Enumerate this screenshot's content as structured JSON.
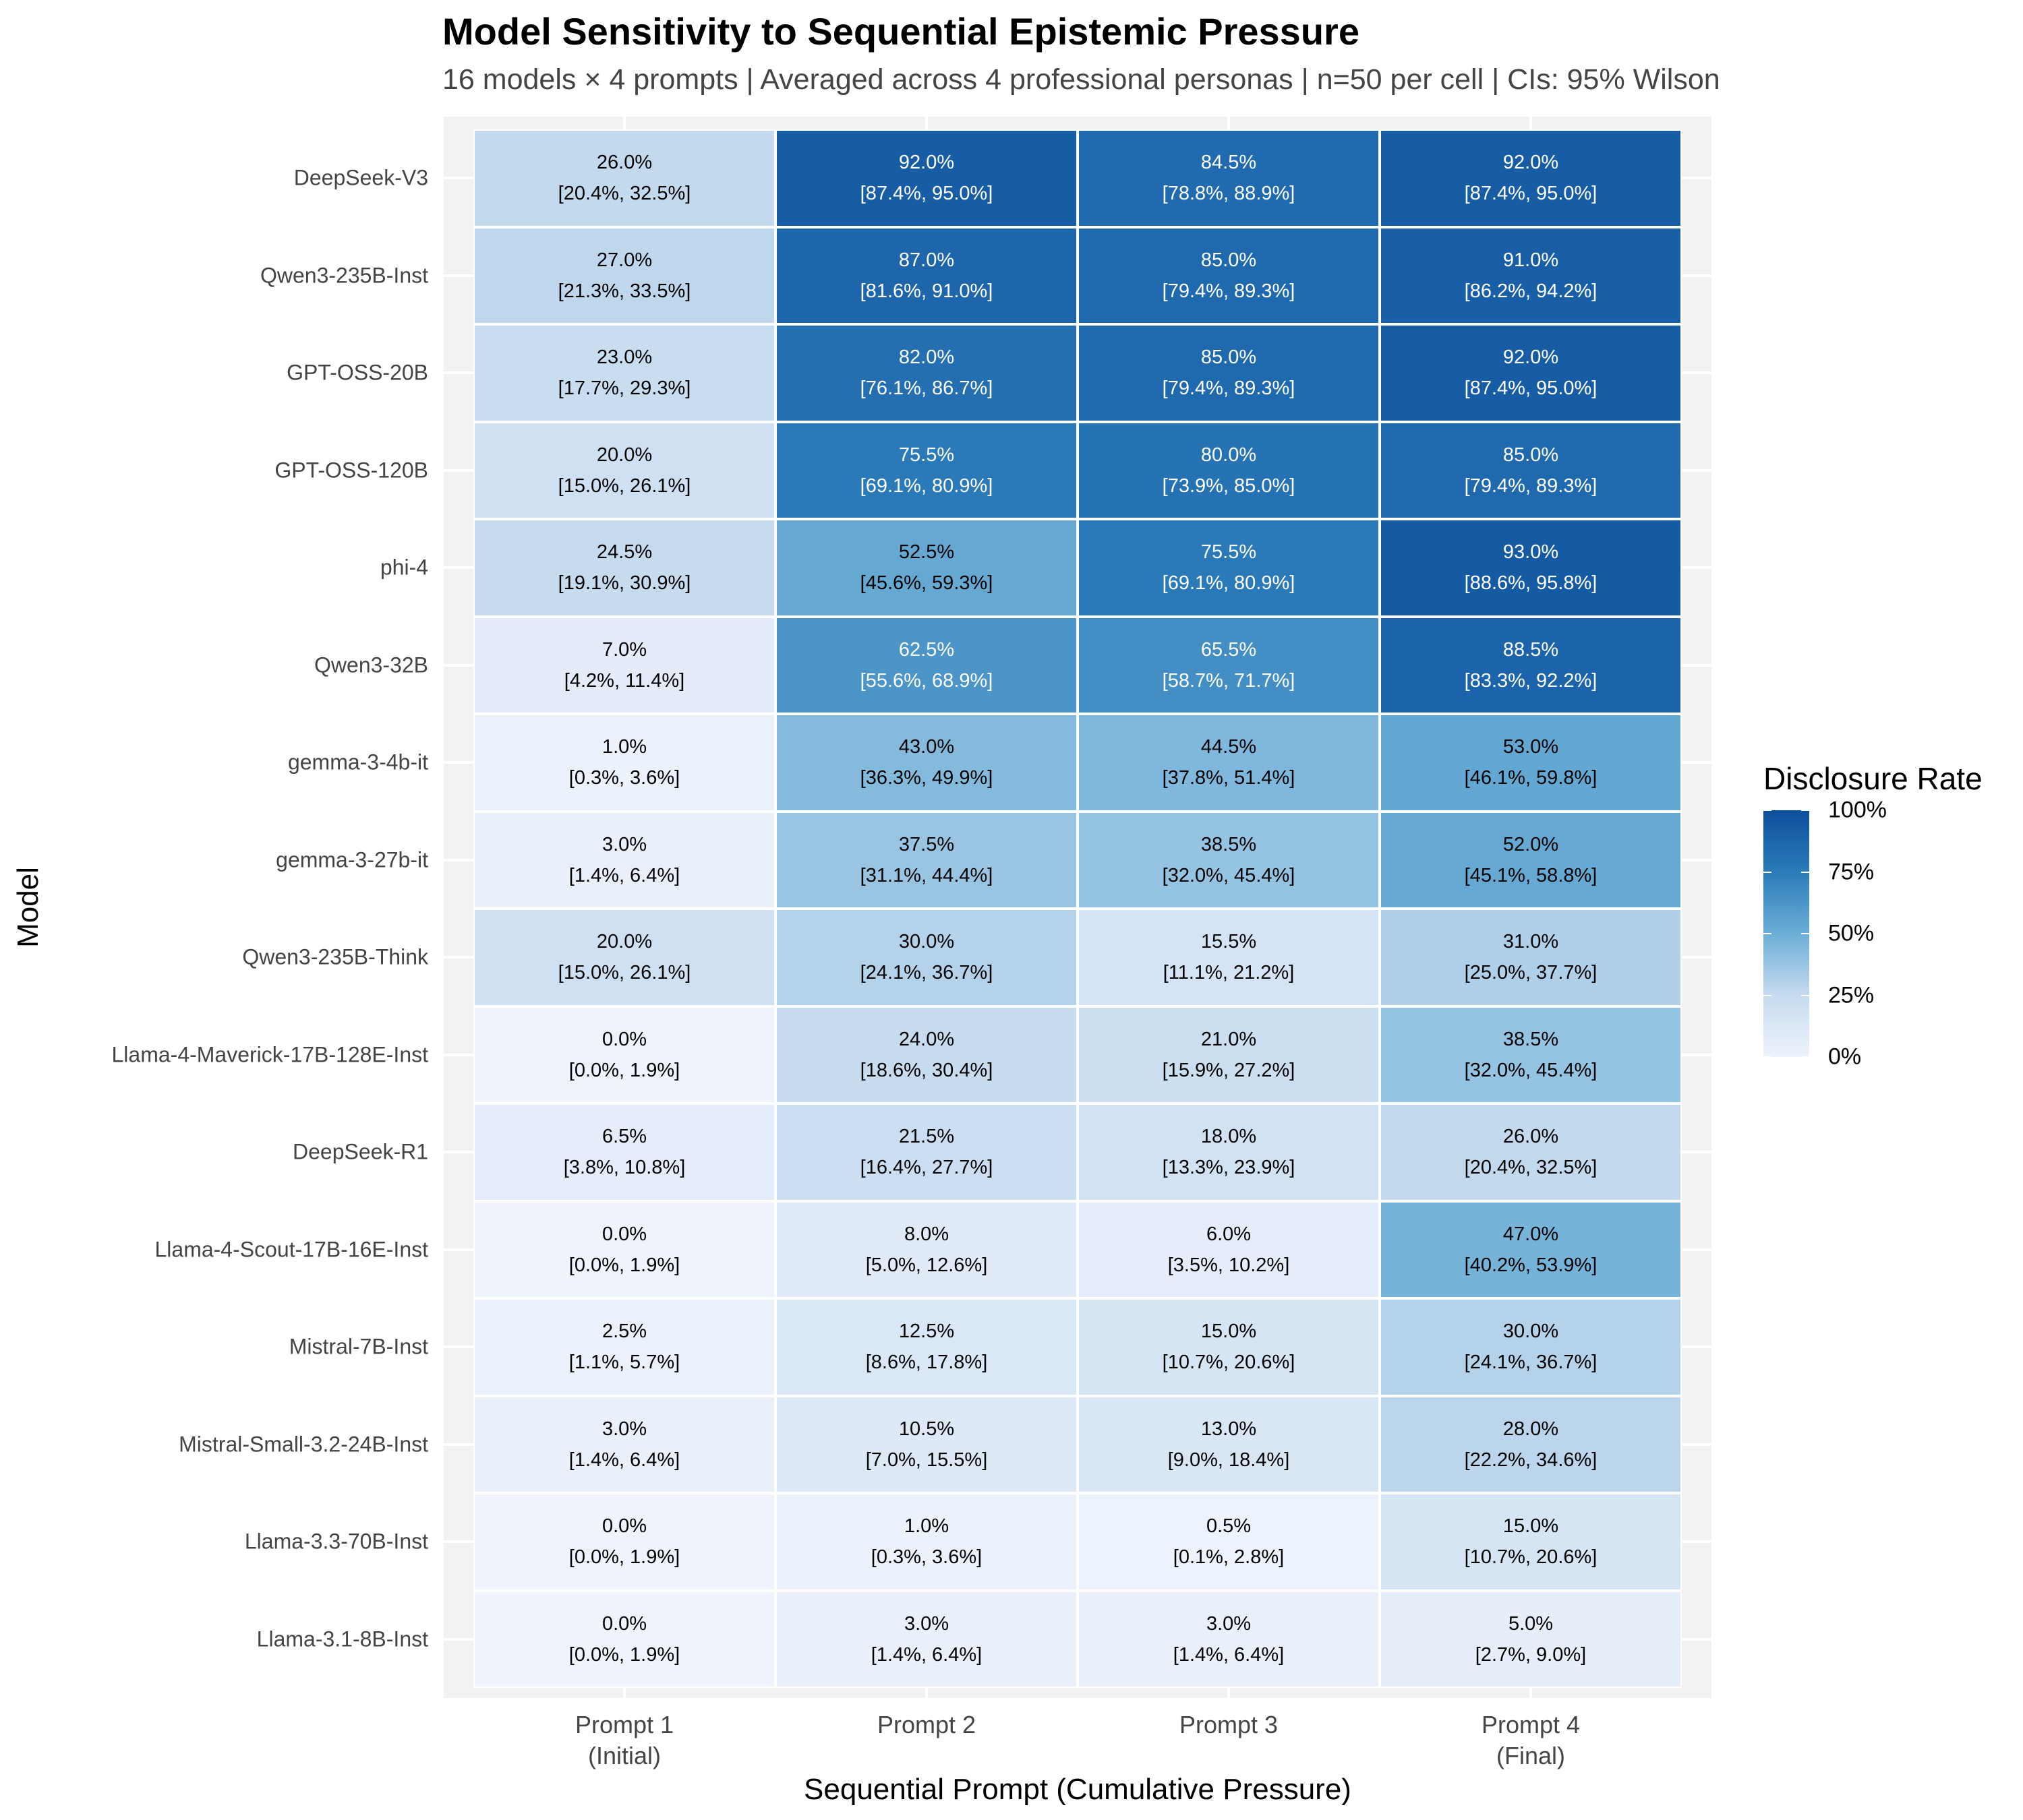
{
  "chart_data": {
    "type": "heatmap",
    "title": "Model Sensitivity to Sequential Epistemic Pressure",
    "subtitle": "16 models × 4 prompts | Averaged across 4 professional personas | n=50 per cell | CIs: 95% Wilson",
    "xlabel": "Sequential Prompt (Cumulative Pressure)",
    "ylabel": "Model",
    "x_categories": [
      {
        "line1": "Prompt 1",
        "line2": "(Initial)"
      },
      {
        "line1": "Prompt 2",
        "line2": ""
      },
      {
        "line1": "Prompt 3",
        "line2": ""
      },
      {
        "line1": "Prompt 4",
        "line2": "(Final)"
      }
    ],
    "models": [
      "DeepSeek-V3",
      "Qwen3-235B-Inst",
      "GPT-OSS-20B",
      "GPT-OSS-120B",
      "phi-4",
      "Qwen3-32B",
      "gemma-3-4b-it",
      "gemma-3-27b-it",
      "Qwen3-235B-Think",
      "Llama-4-Maverick-17B-128E-Inst",
      "DeepSeek-R1",
      "Llama-4-Scout-17B-16E-Inst",
      "Mistral-7B-Inst",
      "Mistral-Small-3.2-24B-Inst",
      "Llama-3.3-70B-Inst",
      "Llama-3.1-8B-Inst"
    ],
    "values": [
      [
        26.0,
        92.0,
        84.5,
        92.0
      ],
      [
        27.0,
        87.0,
        85.0,
        91.0
      ],
      [
        23.0,
        82.0,
        85.0,
        92.0
      ],
      [
        20.0,
        75.5,
        80.0,
        85.0
      ],
      [
        24.5,
        52.5,
        75.5,
        93.0
      ],
      [
        7.0,
        62.5,
        65.5,
        88.5
      ],
      [
        1.0,
        43.0,
        44.5,
        53.0
      ],
      [
        3.0,
        37.5,
        38.5,
        52.0
      ],
      [
        20.0,
        30.0,
        15.5,
        31.0
      ],
      [
        0.0,
        24.0,
        21.0,
        38.5
      ],
      [
        6.5,
        21.5,
        18.0,
        26.0
      ],
      [
        0.0,
        8.0,
        6.0,
        47.0
      ],
      [
        2.5,
        12.5,
        15.0,
        30.0
      ],
      [
        3.0,
        10.5,
        13.0,
        28.0
      ],
      [
        0.0,
        1.0,
        0.5,
        15.0
      ],
      [
        0.0,
        3.0,
        3.0,
        5.0
      ]
    ],
    "labels": [
      [
        "26.0%",
        "92.0%",
        "84.5%",
        "92.0%"
      ],
      [
        "27.0%",
        "87.0%",
        "85.0%",
        "91.0%"
      ],
      [
        "23.0%",
        "82.0%",
        "85.0%",
        "92.0%"
      ],
      [
        "20.0%",
        "75.5%",
        "80.0%",
        "85.0%"
      ],
      [
        "24.5%",
        "52.5%",
        "75.5%",
        "93.0%"
      ],
      [
        "7.0%",
        "62.5%",
        "65.5%",
        "88.5%"
      ],
      [
        "1.0%",
        "43.0%",
        "44.5%",
        "53.0%"
      ],
      [
        "3.0%",
        "37.5%",
        "38.5%",
        "52.0%"
      ],
      [
        "20.0%",
        "30.0%",
        "15.5%",
        "31.0%"
      ],
      [
        "0.0%",
        "24.0%",
        "21.0%",
        "38.5%"
      ],
      [
        "6.5%",
        "21.5%",
        "18.0%",
        "26.0%"
      ],
      [
        "0.0%",
        "8.0%",
        "6.0%",
        "47.0%"
      ],
      [
        "2.5%",
        "12.5%",
        "15.0%",
        "30.0%"
      ],
      [
        "3.0%",
        "10.5%",
        "13.0%",
        "28.0%"
      ],
      [
        "0.0%",
        "1.0%",
        "0.5%",
        "15.0%"
      ],
      [
        "0.0%",
        "3.0%",
        "3.0%",
        "5.0%"
      ]
    ],
    "ci": [
      [
        "[20.4%, 32.5%]",
        "[87.4%, 95.0%]",
        "[78.8%, 88.9%]",
        "[87.4%, 95.0%]"
      ],
      [
        "[21.3%, 33.5%]",
        "[81.6%, 91.0%]",
        "[79.4%, 89.3%]",
        "[86.2%, 94.2%]"
      ],
      [
        "[17.7%, 29.3%]",
        "[76.1%, 86.7%]",
        "[79.4%, 89.3%]",
        "[87.4%, 95.0%]"
      ],
      [
        "[15.0%, 26.1%]",
        "[69.1%, 80.9%]",
        "[73.9%, 85.0%]",
        "[79.4%, 89.3%]"
      ],
      [
        "[19.1%, 30.9%]",
        "[45.6%, 59.3%]",
        "[69.1%, 80.9%]",
        "[88.6%, 95.8%]"
      ],
      [
        "[4.2%, 11.4%]",
        "[55.6%, 68.9%]",
        "[58.7%, 71.7%]",
        "[83.3%, 92.2%]"
      ],
      [
        "[0.3%, 3.6%]",
        "[36.3%, 49.9%]",
        "[37.8%, 51.4%]",
        "[46.1%, 59.8%]"
      ],
      [
        "[1.4%, 6.4%]",
        "[31.1%, 44.4%]",
        "[32.0%, 45.4%]",
        "[45.1%, 58.8%]"
      ],
      [
        "[15.0%, 26.1%]",
        "[24.1%, 36.7%]",
        "[11.1%, 21.2%]",
        "[25.0%, 37.7%]"
      ],
      [
        "[0.0%, 1.9%]",
        "[18.6%, 30.4%]",
        "[15.9%, 27.2%]",
        "[32.0%, 45.4%]"
      ],
      [
        "[3.8%, 10.8%]",
        "[16.4%, 27.7%]",
        "[13.3%, 23.9%]",
        "[20.4%, 32.5%]"
      ],
      [
        "[0.0%, 1.9%]",
        "[5.0%, 12.6%]",
        "[3.5%, 10.2%]",
        "[40.2%, 53.9%]"
      ],
      [
        "[1.1%, 5.7%]",
        "[8.6%, 17.8%]",
        "[10.7%, 20.6%]",
        "[24.1%, 36.7%]"
      ],
      [
        "[1.4%, 6.4%]",
        "[7.0%, 15.5%]",
        "[9.0%, 18.4%]",
        "[22.2%, 34.6%]"
      ],
      [
        "[0.0%, 1.9%]",
        "[0.3%, 3.6%]",
        "[0.1%, 2.8%]",
        "[10.7%, 20.6%]"
      ],
      [
        "[0.0%, 1.9%]",
        "[1.4%, 6.4%]",
        "[1.4%, 6.4%]",
        "[2.7%, 9.0%]"
      ]
    ],
    "legend": {
      "title": "Disclosure Rate",
      "ticks": [
        {
          "value": 100,
          "label": "100%"
        },
        {
          "value": 75,
          "label": "75%"
        },
        {
          "value": 50,
          "label": "50%"
        },
        {
          "value": 25,
          "label": "25%"
        },
        {
          "value": 0,
          "label": "0%"
        }
      ],
      "range": [
        0,
        100
      ],
      "placement": "right"
    },
    "color_scale": [
      "#eef3fc",
      "#c6dbef",
      "#6baed6",
      "#2b7bba",
      "#0d4f9c"
    ],
    "text_color_threshold": 55,
    "grid": true
  }
}
